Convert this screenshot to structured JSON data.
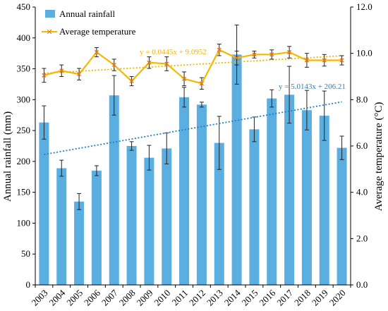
{
  "chart_data": {
    "type": "bar+line",
    "categories": [
      "2003",
      "2004",
      "2005",
      "2006",
      "2007",
      "2008",
      "2009",
      "2010",
      "2011",
      "2012",
      "2013",
      "2014",
      "2015",
      "2016",
      "2017",
      "2018",
      "2019",
      "2020"
    ],
    "series": [
      {
        "name": "Annual rainfall",
        "type": "bar",
        "axis": "left",
        "color": "#5aaee0",
        "values": [
          263,
          189,
          135,
          185,
          307,
          225,
          206,
          221,
          304,
          292,
          230,
          373,
          252,
          302,
          308,
          283,
          274,
          222
        ],
        "error": [
          27,
          13,
          13,
          8,
          32,
          7,
          20,
          25,
          16,
          4,
          43,
          48,
          20,
          14,
          46,
          32,
          40,
          19
        ]
      },
      {
        "name": "Average temperature",
        "type": "line",
        "axis": "right",
        "color": "#f5b800",
        "marker_color": "#e8751a",
        "values": [
          9.05,
          9.25,
          9.1,
          10.05,
          9.5,
          8.8,
          9.6,
          9.55,
          8.9,
          8.7,
          10.15,
          9.8,
          9.95,
          9.95,
          10.05,
          9.7,
          9.7,
          9.7
        ],
        "error": [
          0.3,
          0.25,
          0.25,
          0.2,
          0.25,
          0.2,
          0.25,
          0.3,
          0.3,
          0.25,
          0.25,
          0.3,
          0.15,
          0.2,
          0.25,
          0.3,
          0.25,
          0.2
        ]
      }
    ],
    "trendlines": [
      {
        "series": "Annual rainfall",
        "slope": 5.0143,
        "intercept": 206.21,
        "label": "y = 5.0143x + 206.21",
        "color": "#1f7fc4"
      },
      {
        "series": "Average temperature",
        "slope": 0.0445,
        "intercept": 9.0952,
        "label": "y = 0.0445x + 9.0952",
        "color": "#f0b400"
      }
    ],
    "ylabel": "Annual rainfall (mm)",
    "y2label": "Average temperature (°C)",
    "ylim": [
      0,
      450
    ],
    "y2lim": [
      0,
      12
    ],
    "yticks": [
      "0",
      "50",
      "100",
      "150",
      "200",
      "250",
      "300",
      "350",
      "400",
      "450"
    ],
    "y2ticks": [
      "0.0",
      "2.0",
      "4.0",
      "6.0",
      "8.0",
      "10.0",
      "12.0"
    ],
    "legend": {
      "position": "top-left",
      "entries": [
        "Annual rainfall",
        "Average temperature"
      ]
    },
    "grid": false
  }
}
